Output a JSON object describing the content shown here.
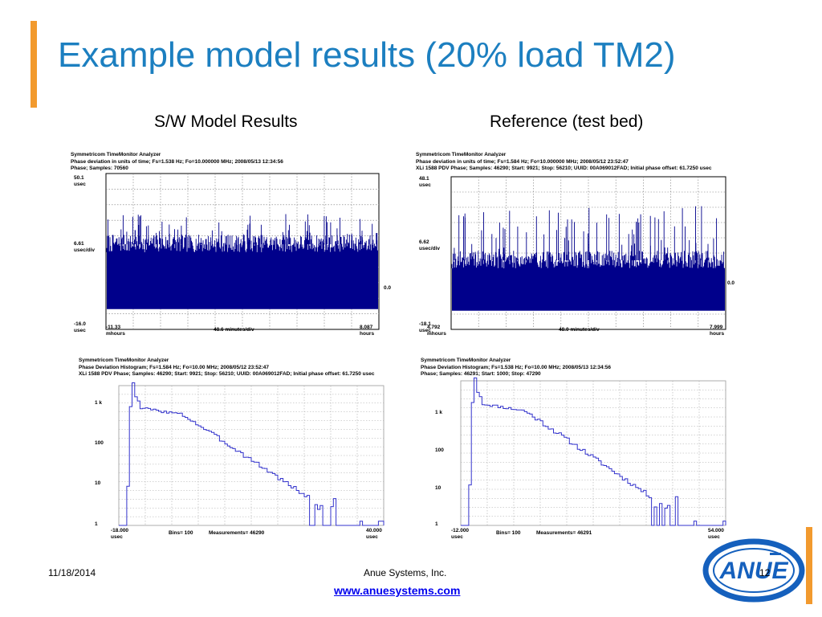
{
  "slide": {
    "title": "Example model results (20% load TM2)",
    "left_heading": "S/W Model Results",
    "right_heading": "Reference (test bed)",
    "accent_color": "#F29A2E",
    "title_color": "#1C7FC0"
  },
  "footer": {
    "date": "11/18/2014",
    "company": "Anue Systems, Inc.",
    "url": "www.anuesystems.com",
    "page": "12"
  },
  "logo": {
    "text": "ANUE",
    "icon": "anue-logo-icon"
  },
  "panels": {
    "phase_model": {
      "header": [
        "Symmetricom TimeMonitor Analyzer",
        "Phase deviation in units of time;   Fs=1.538 Hz; Fo=10.000000 MHz; 2008/05/13 12:34:56",
        "Phase;  Samples: 70560"
      ],
      "y_top": "50.1",
      "y_top_unit": "usec",
      "y_div": "6.61",
      "y_div_unit": "usec/div",
      "y_bottom": "-16.0",
      "y_bottom_unit": "usec",
      "zero_label": "0.0",
      "x_left": "-11.33",
      "x_left_unit": "mhours",
      "x_div": "48.6 minutes/div",
      "x_right": "8.087",
      "x_right_unit": "hours",
      "trace_color": "#00008B"
    },
    "phase_ref": {
      "header": [
        "Symmetricom TimeMonitor Analyzer",
        "Phase deviation in units of time;   Fs=1.584 Hz; Fo=10.000000 MHz; 2008/05/12  23:52:47",
        "XLi 1588 PDV Phase;  Samples: 46290;  Start: 9921;  Stop: 56210;  UUID: 00A069012FAD;  Initial phase offset: 61.7250 usec"
      ],
      "y_top": "48.1",
      "y_top_unit": "usec",
      "y_div": "6.62",
      "y_div_unit": "usec/div",
      "y_bottom": "-18.1",
      "y_bottom_unit": "usec",
      "zero_label": "0.0",
      "x_left": "4.792",
      "x_left_unit": "mhours",
      "x_div": "48.0 minutes/div",
      "x_right": "7.999",
      "x_right_unit": "hours",
      "trace_color": "#00008B"
    },
    "hist_model": {
      "header": [
        "Symmetricom TimeMonitor Analyzer",
        "Phase Deviation Histogram;  Fs=1.584 Hz; Fo=10.00 MHz; 2008/05/12  23:52:47",
        "XLi 1588 PDV Phase;  Samples: 46290;  Start: 9921;  Stop: 56210;  UUID: 00A069012FAD;  Initial phase offset: 61.7250 usec"
      ],
      "y_labels": [
        "1 k",
        "100",
        "10",
        "1"
      ],
      "x_left": "-18.000",
      "x_left_unit": "usec",
      "bins": "Bins= 100",
      "measurements": "Measurements= 46290",
      "x_right": "40.000",
      "x_right_unit": "usec",
      "trace_color": "#3333CC"
    },
    "hist_ref": {
      "header": [
        "Symmetricom TimeMonitor Analyzer",
        "Phase Deviation Histogram;  Fs=1.538 Hz; Fo=10.00 MHz; 2008/05/13 12:34:56",
        "Phase;  Samples: 46291;  Start: 1000;  Stop: 47290"
      ],
      "y_labels": [
        "1 k",
        "100",
        "10",
        "1"
      ],
      "x_left": "-12.000",
      "x_left_unit": "usec",
      "bins": "Bins= 100",
      "measurements": "Measurements= 46291",
      "x_right": "54.000",
      "x_right_unit": "usec",
      "trace_color": "#3333CC"
    }
  }
}
